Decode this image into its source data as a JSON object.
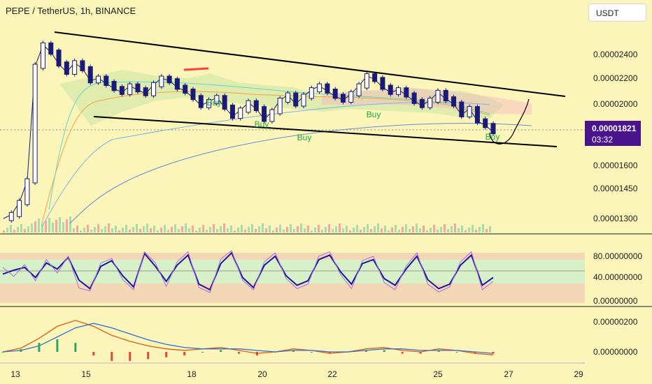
{
  "header": {
    "title": "PEPE / TetherUS, 1h, BINANCE",
    "currency": "USDT"
  },
  "price_tag": {
    "price": "0.00001821",
    "countdown": "03:32"
  },
  "chart_data": [
    {
      "type": "line",
      "panel": "price",
      "x_ticks": [
        "13",
        "15",
        "18",
        "20",
        "22",
        "25",
        "27",
        "29"
      ],
      "y_ticks": [
        "0.00002400",
        "0.00002200",
        "0.00002000",
        "0.00001600",
        "0.00001450",
        "0.00001300"
      ],
      "y_tick_values": [
        2.4e-05,
        2.2e-05,
        2e-05,
        1.6e-05,
        1.45e-05,
        1.3e-05
      ],
      "series": [
        {
          "values": [
            1.3e-05,
            1.32e-05,
            1.38e-05,
            1.5e-05,
            2.3e-05,
            2.48e-05,
            2.42e-05,
            2.32e-05,
            2.25e-05,
            2.33e-05,
            2.28e-05,
            2.18e-05,
            2.2e-05,
            2.16e-05,
            2.12e-05,
            2.09e-05,
            2.14e-05,
            2.11e-05,
            2.08e-05,
            2.15e-05,
            2.2e-05,
            2.18e-05,
            2.13e-05,
            2.1e-05,
            2.05e-05,
            1.99e-05,
            2.02e-05,
            2.05e-05,
            1.98e-05,
            1.92e-05,
            1.96e-05,
            2.01e-05,
            1.97e-05,
            1.9e-05,
            1.95e-05,
            2.03e-05,
            2.07e-05,
            2e-05,
            2.06e-05,
            2.11e-05,
            2.14e-05,
            2.1e-05,
            2.06e-05,
            2.03e-05,
            2.08e-05,
            2.14e-05,
            2.22e-05,
            2.19e-05,
            2.13e-05,
            2.09e-05,
            2.11e-05,
            2.07e-05,
            2.02e-05,
            1.99e-05,
            2.03e-05,
            2.09e-05,
            2.04e-05,
            2e-05,
            1.93e-05,
            1.97e-05,
            1.89e-05,
            1.86e-05,
            1.82e-05
          ]
        }
      ],
      "annotations": [
        "Buy",
        "Buy",
        "Buy",
        "Buy",
        "Buy"
      ]
    },
    {
      "type": "line",
      "panel": "stochastic_rsi",
      "y_ticks": [
        "80.00000000",
        "40.00000000",
        "0.00000000"
      ],
      "y_tick_values": [
        80,
        40,
        0
      ],
      "series": [
        {
          "values": [
            48,
            55,
            60,
            42,
            68,
            57,
            78,
            37,
            22,
            62,
            72,
            45,
            25,
            85,
            62,
            35,
            64,
            82,
            30,
            20,
            67,
            86,
            42,
            24,
            64,
            80,
            45,
            28,
            36,
            74,
            82,
            52,
            30,
            67,
            74,
            40,
            28,
            57,
            80,
            38,
            22,
            30,
            64,
            82,
            28,
            42
          ]
        },
        {
          "values": [
            60,
            44,
            65,
            36,
            74,
            50,
            80,
            23,
            18,
            68,
            76,
            38,
            20,
            88,
            68,
            26,
            70,
            88,
            24,
            15,
            75,
            90,
            37,
            20,
            70,
            86,
            40,
            22,
            30,
            80,
            88,
            47,
            22,
            72,
            80,
            33,
            20,
            62,
            86,
            30,
            16,
            25,
            70,
            88,
            20,
            35
          ]
        }
      ]
    },
    {
      "type": "line",
      "panel": "macd",
      "y_ticks": [
        "0.00000200",
        "0.00000000"
      ],
      "y_tick_values": [
        2e-06,
        0
      ],
      "series": [
        {
          "values": [
            0,
            2.5e-07,
            9e-07,
            1.7e-06,
            2.1e-06,
            1.7e-06,
            1.1e-06,
            7e-07,
            4e-07,
            2e-07,
            1e-07,
            2e-07,
            3e-07,
            1e-07,
            -1e-07,
            0,
            2e-07,
            1e-07,
            -1e-07,
            0,
            2e-07,
            3e-07,
            1e-07,
            0,
            2e-07,
            1e-07,
            -1e-07,
            -2e-07
          ]
        },
        {
          "values": [
            0,
            1e-07,
            4e-07,
            1e-06,
            1.6e-06,
            1.9e-06,
            1.6e-06,
            1.2e-06,
            8e-07,
            5e-07,
            3e-07,
            2e-07,
            2e-07,
            2e-07,
            1e-07,
            0,
            1e-07,
            1e-07,
            0,
            0,
            1e-07,
            2e-07,
            2e-07,
            1e-07,
            1e-07,
            1e-07,
            0,
            -1e-07
          ]
        }
      ]
    }
  ]
}
